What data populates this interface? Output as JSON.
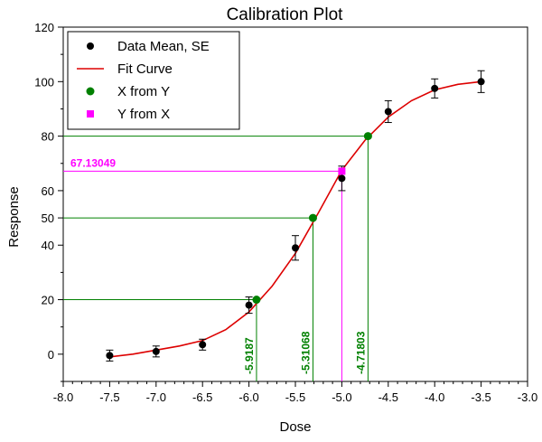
{
  "chart_data": {
    "type": "line",
    "title": "Calibration Plot",
    "xlabel": "Dose",
    "ylabel": "Response",
    "xlim": [
      -8.0,
      -3.0
    ],
    "ylim": [
      -10,
      120
    ],
    "x_ticks": [
      -8.0,
      -7.5,
      -7.0,
      -6.5,
      -6.0,
      -5.5,
      -5.0,
      -4.5,
      -4.0,
      -3.5,
      -3.0
    ],
    "x_tick_labels": [
      "-8.0",
      "-7.5",
      "-7.0",
      "-6.5",
      "-6.0",
      "-5.5",
      "-5.0",
      "-4.5",
      "-4.0",
      "-3.5",
      "-3.0"
    ],
    "y_ticks": [
      0,
      20,
      40,
      50,
      60,
      80,
      100,
      120
    ],
    "y_tick_labels": [
      "0",
      "20",
      "40",
      "50",
      "60",
      "80",
      "100",
      "120"
    ],
    "grid": false,
    "legend_placement": "top-left",
    "colors": {
      "data": "#000000",
      "fit": "#dd0000",
      "x_from_y": "#008000",
      "y_from_x": "#ff00ff"
    },
    "series": [
      {
        "name": "Data Mean, SE",
        "kind": "errorbar-scatter",
        "x": [
          -7.5,
          -7.0,
          -6.5,
          -6.0,
          -5.5,
          -5.0,
          -4.5,
          -4.0,
          -3.5
        ],
        "y": [
          -0.5,
          1.0,
          3.5,
          18.0,
          39.0,
          64.5,
          89.0,
          97.5,
          100.0
        ],
        "err": [
          2.0,
          2.0,
          2.0,
          3.0,
          4.5,
          4.5,
          4.0,
          3.5,
          4.0
        ]
      },
      {
        "name": "Fit Curve",
        "kind": "line",
        "x": [
          -7.5,
          -7.25,
          -7.0,
          -6.75,
          -6.5,
          -6.25,
          -6.0,
          -5.75,
          -5.5,
          -5.25,
          -5.0,
          -4.75,
          -4.5,
          -4.25,
          -4.0,
          -3.75,
          -3.5
        ],
        "y": [
          -1.0,
          0.0,
          1.5,
          3.0,
          5.0,
          9.0,
          15.5,
          25.0,
          37.0,
          52.0,
          67.5,
          78.5,
          87.0,
          93.0,
          97.0,
          99.0,
          100.0
        ]
      },
      {
        "name": "X from Y",
        "kind": "scatter",
        "x": [
          -5.9187,
          -5.31068,
          -4.71803
        ],
        "y": [
          20,
          50,
          80
        ],
        "labels": [
          "-5.9187",
          "-5.31068",
          "-4.71803"
        ]
      },
      {
        "name": "Y from X",
        "kind": "scatter",
        "x": [
          -5.0
        ],
        "y": [
          67.13049
        ],
        "labels": [
          "67.13049"
        ]
      }
    ]
  }
}
